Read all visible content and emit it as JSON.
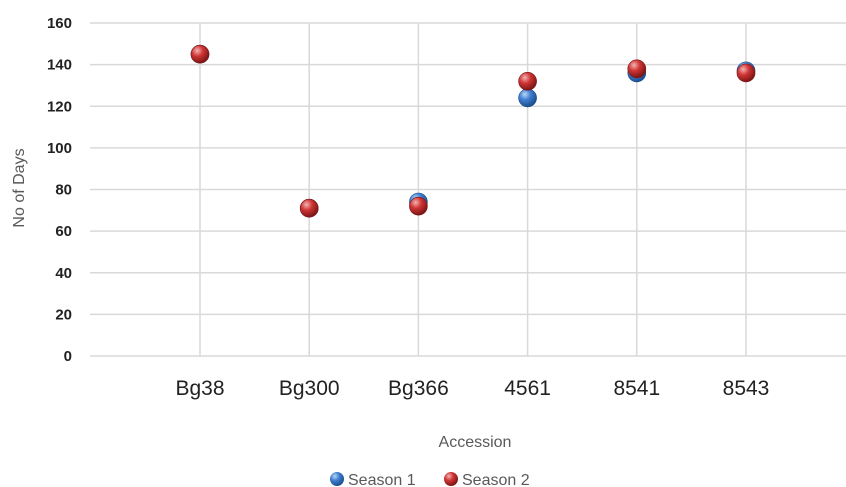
{
  "chart_data": {
    "type": "scatter",
    "title": "",
    "xlabel": "Accession",
    "ylabel": "No of Days",
    "ylim": [
      0,
      160
    ],
    "yticks": [
      0,
      20,
      40,
      60,
      80,
      100,
      120,
      140,
      160
    ],
    "categories": [
      "Bg38",
      "Bg300",
      "Bg366",
      "4561",
      "8541",
      "8543"
    ],
    "grid": true,
    "legend_position": "bottom",
    "series": [
      {
        "name": "Season 1",
        "color": "#3c78c8",
        "values": [
          145,
          71,
          74,
          124,
          136,
          137
        ]
      },
      {
        "name": "Season 2",
        "color": "#c8323a",
        "values": [
          145,
          71,
          72,
          132,
          138,
          136
        ]
      }
    ]
  }
}
